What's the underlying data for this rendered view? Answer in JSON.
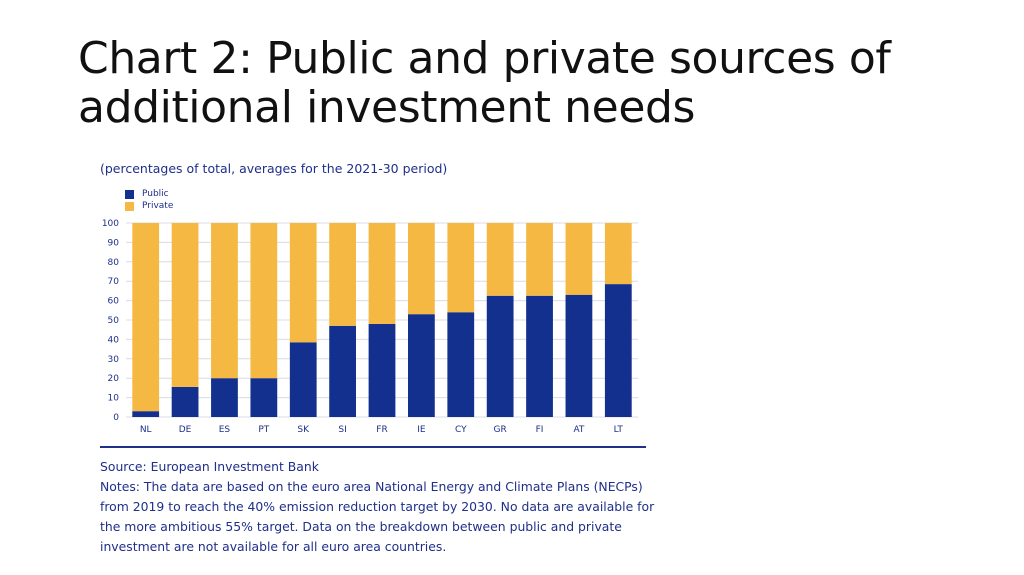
{
  "slide": {
    "title": "Chart 2: Public and private sources of additional investment needs"
  },
  "chart_data": {
    "type": "bar",
    "stacked": true,
    "subtitle": "(percentages of total, averages for the 2021-30 period)",
    "categories": [
      "NL",
      "DE",
      "ES",
      "PT",
      "SK",
      "SI",
      "FR",
      "IE",
      "CY",
      "GR",
      "FI",
      "AT",
      "LT"
    ],
    "series": [
      {
        "name": "Public",
        "color": "#13308f",
        "values": [
          3,
          15.5,
          20,
          20,
          38.5,
          47,
          48,
          53,
          54,
          62.5,
          62.5,
          63,
          68.5
        ]
      },
      {
        "name": "Private",
        "color": "#f5b943",
        "values": [
          97,
          84.5,
          80,
          80,
          61.5,
          53,
          52,
          47,
          46,
          37.5,
          37.5,
          37,
          31.5
        ]
      }
    ],
    "ylim": [
      0,
      100
    ],
    "yticks": [
      0,
      10,
      20,
      30,
      40,
      50,
      60,
      70,
      80,
      90,
      100
    ],
    "grid": true,
    "legend_position": "top-left"
  },
  "footer": {
    "source": "Source: European Investment Bank",
    "notes": "Notes: The data are based on the euro area National Energy and Climate Plans (NECPs) from 2019 to reach the 40% emission reduction target by 2030. No data are available for the more ambitious 55% target. Data on the breakdown between public and private investment are not available for all euro area countries."
  }
}
